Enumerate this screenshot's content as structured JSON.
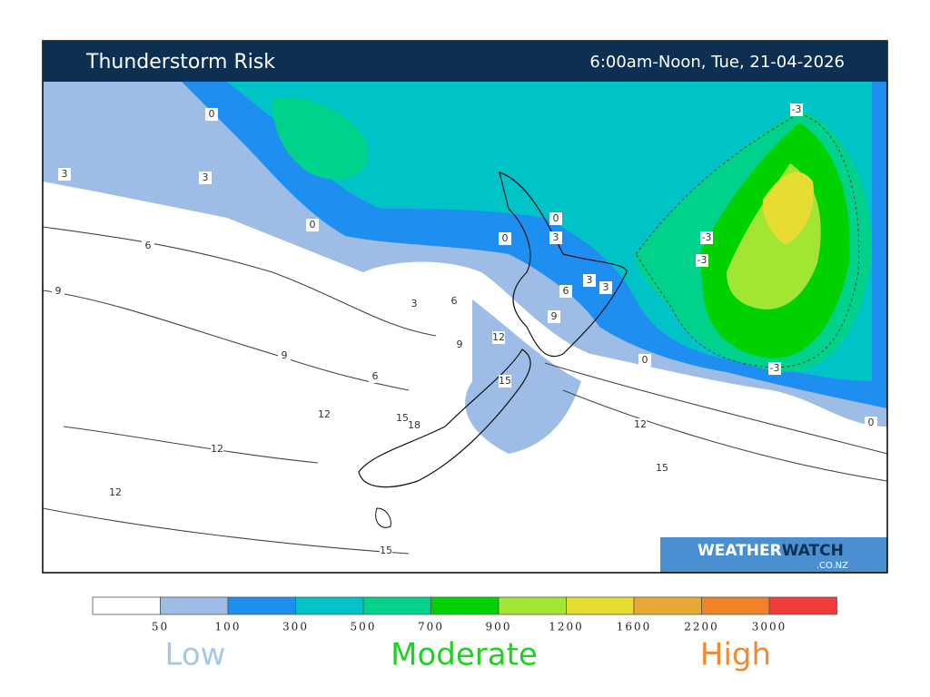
{
  "header": {
    "title": "Thunderstorm Risk",
    "period": "6:00am-Noon, Tue, 21-04-2026"
  },
  "map": {
    "contour_labels": [
      "0",
      "3",
      "3",
      "0",
      "6",
      "0",
      "0",
      "3",
      "9",
      "3",
      "6",
      "3",
      "6",
      "3",
      "9",
      "9",
      "12",
      "9",
      "6",
      "15",
      "12",
      "15",
      "18",
      "12",
      "12",
      "15",
      "12",
      "0",
      "0",
      "-3",
      "-3",
      "-3",
      "-3",
      "15"
    ]
  },
  "brand": {
    "name_a": "WEATHER",
    "name_b": "WATCH",
    "domain": ".CO.NZ"
  },
  "legend": {
    "colors": [
      "#ffffff",
      "#9dbde6",
      "#1e8ff0",
      "#00c3c8",
      "#00d28c",
      "#00d200",
      "#a0e632",
      "#e6dc32",
      "#e6aa32",
      "#f08228",
      "#f03c3c"
    ],
    "thresholds": [
      50,
      100,
      300,
      500,
      700,
      900,
      1200,
      1600,
      2200,
      3000
    ],
    "levels": [
      "Low",
      "Moderate",
      "High"
    ]
  }
}
